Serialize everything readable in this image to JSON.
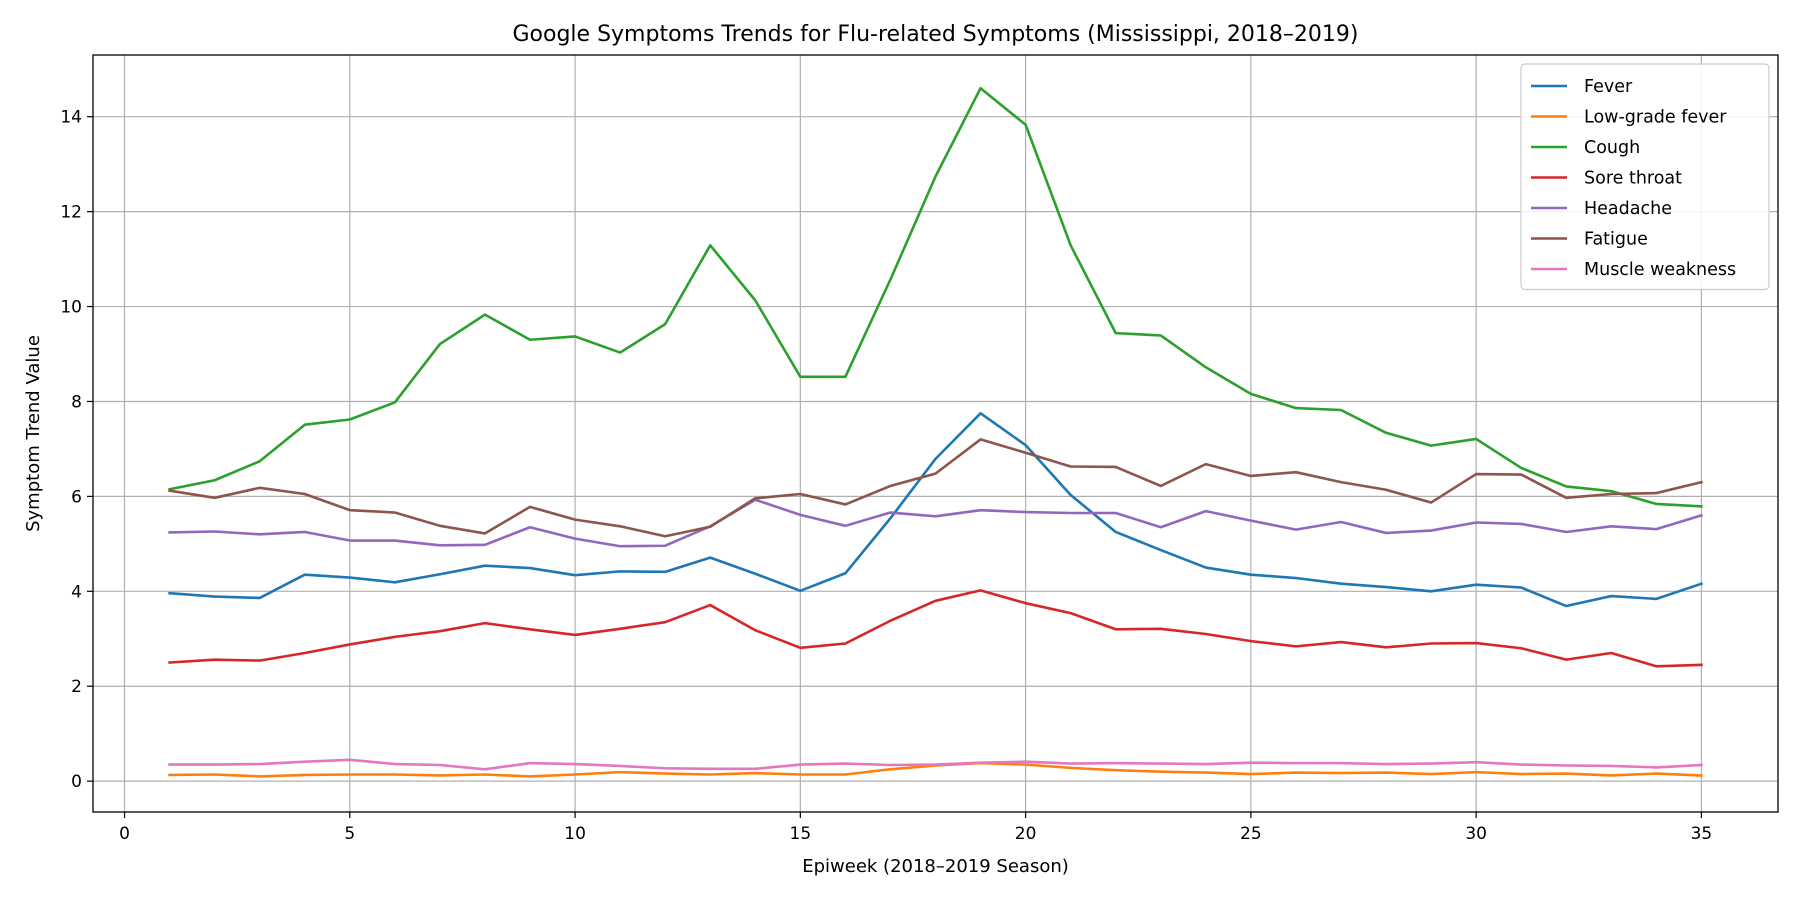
{
  "chart_data": {
    "type": "line",
    "title": "Google Symptoms Trends for Flu-related Symptoms (Mississippi, 2018–2019)",
    "xlabel": "Epiweek (2018–2019 Season)",
    "ylabel": "Symptom Trend Value",
    "xlim": [
      -0.7,
      36.7
    ],
    "ylim": [
      -0.65,
      15.3
    ],
    "xticks": [
      0,
      5,
      10,
      15,
      20,
      25,
      30,
      35
    ],
    "yticks": [
      0,
      2,
      4,
      6,
      8,
      10,
      12,
      14
    ],
    "grid": true,
    "legend_position": "top-right",
    "x": [
      1,
      2,
      3,
      4,
      5,
      6,
      7,
      8,
      9,
      10,
      11,
      12,
      13,
      14,
      15,
      16,
      17,
      18,
      19,
      20,
      21,
      22,
      23,
      24,
      25,
      26,
      27,
      28,
      29,
      30,
      31,
      32,
      33,
      34,
      35
    ],
    "series": [
      {
        "name": "Fever",
        "color": "#1f77b4",
        "values": [
          3.96,
          3.89,
          3.86,
          4.35,
          4.29,
          4.19,
          4.36,
          4.54,
          4.49,
          4.34,
          4.42,
          4.41,
          4.71,
          4.37,
          4.01,
          4.38,
          5.54,
          6.79,
          7.75,
          7.08,
          6.03,
          5.25,
          4.87,
          4.5,
          4.35,
          4.28,
          4.16,
          4.09,
          4.0,
          4.14,
          4.08,
          3.69,
          3.9,
          3.84,
          4.16
        ]
      },
      {
        "name": "Low-grade fever",
        "color": "#ff7f0e",
        "values": [
          0.13,
          0.14,
          0.1,
          0.13,
          0.14,
          0.14,
          0.12,
          0.14,
          0.1,
          0.14,
          0.19,
          0.16,
          0.14,
          0.17,
          0.14,
          0.14,
          0.25,
          0.33,
          0.38,
          0.35,
          0.28,
          0.23,
          0.2,
          0.18,
          0.15,
          0.18,
          0.17,
          0.18,
          0.15,
          0.19,
          0.15,
          0.16,
          0.12,
          0.16,
          0.12
        ]
      },
      {
        "name": "Cough",
        "color": "#2ca02c",
        "values": [
          6.15,
          6.34,
          6.74,
          7.51,
          7.62,
          7.98,
          9.21,
          9.83,
          9.3,
          9.37,
          9.03,
          9.63,
          11.29,
          10.13,
          8.52,
          8.52,
          10.57,
          12.74,
          14.6,
          13.83,
          11.29,
          9.44,
          9.39,
          8.72,
          8.16,
          7.86,
          7.82,
          7.34,
          7.07,
          7.21,
          6.6,
          6.21,
          6.11,
          5.84,
          5.79
        ]
      },
      {
        "name": "Sore throat",
        "color": "#d62728",
        "values": [
          2.5,
          2.56,
          2.54,
          2.7,
          2.88,
          3.04,
          3.16,
          3.33,
          3.2,
          3.08,
          3.21,
          3.35,
          3.71,
          3.18,
          2.81,
          2.9,
          3.38,
          3.8,
          4.02,
          3.75,
          3.54,
          3.2,
          3.21,
          3.1,
          2.95,
          2.84,
          2.93,
          2.82,
          2.9,
          2.91,
          2.8,
          2.56,
          2.7,
          2.42,
          2.45
        ]
      },
      {
        "name": "Headache",
        "color": "#9467bd",
        "values": [
          5.24,
          5.26,
          5.2,
          5.25,
          5.07,
          5.07,
          4.97,
          4.98,
          5.35,
          5.11,
          4.95,
          4.96,
          5.37,
          5.93,
          5.61,
          5.38,
          5.66,
          5.58,
          5.71,
          5.67,
          5.65,
          5.65,
          5.35,
          5.69,
          5.49,
          5.3,
          5.46,
          5.23,
          5.28,
          5.45,
          5.42,
          5.25,
          5.37,
          5.31,
          5.6
        ]
      },
      {
        "name": "Fatigue",
        "color": "#8c564b",
        "values": [
          6.12,
          5.97,
          6.18,
          6.05,
          5.71,
          5.66,
          5.38,
          5.22,
          5.78,
          5.51,
          5.37,
          5.16,
          5.36,
          5.96,
          6.05,
          5.83,
          6.22,
          6.48,
          7.2,
          6.92,
          6.63,
          6.62,
          6.22,
          6.68,
          6.43,
          6.51,
          6.3,
          6.14,
          5.87,
          6.47,
          6.46,
          5.97,
          6.05,
          6.07,
          6.3
        ]
      },
      {
        "name": "Muscle weakness",
        "color": "#e377c2",
        "values": [
          0.35,
          0.35,
          0.36,
          0.41,
          0.45,
          0.36,
          0.34,
          0.25,
          0.38,
          0.36,
          0.32,
          0.27,
          0.26,
          0.26,
          0.35,
          0.37,
          0.34,
          0.35,
          0.39,
          0.41,
          0.37,
          0.38,
          0.37,
          0.36,
          0.39,
          0.38,
          0.38,
          0.36,
          0.37,
          0.4,
          0.35,
          0.33,
          0.32,
          0.29,
          0.34
        ]
      }
    ]
  }
}
